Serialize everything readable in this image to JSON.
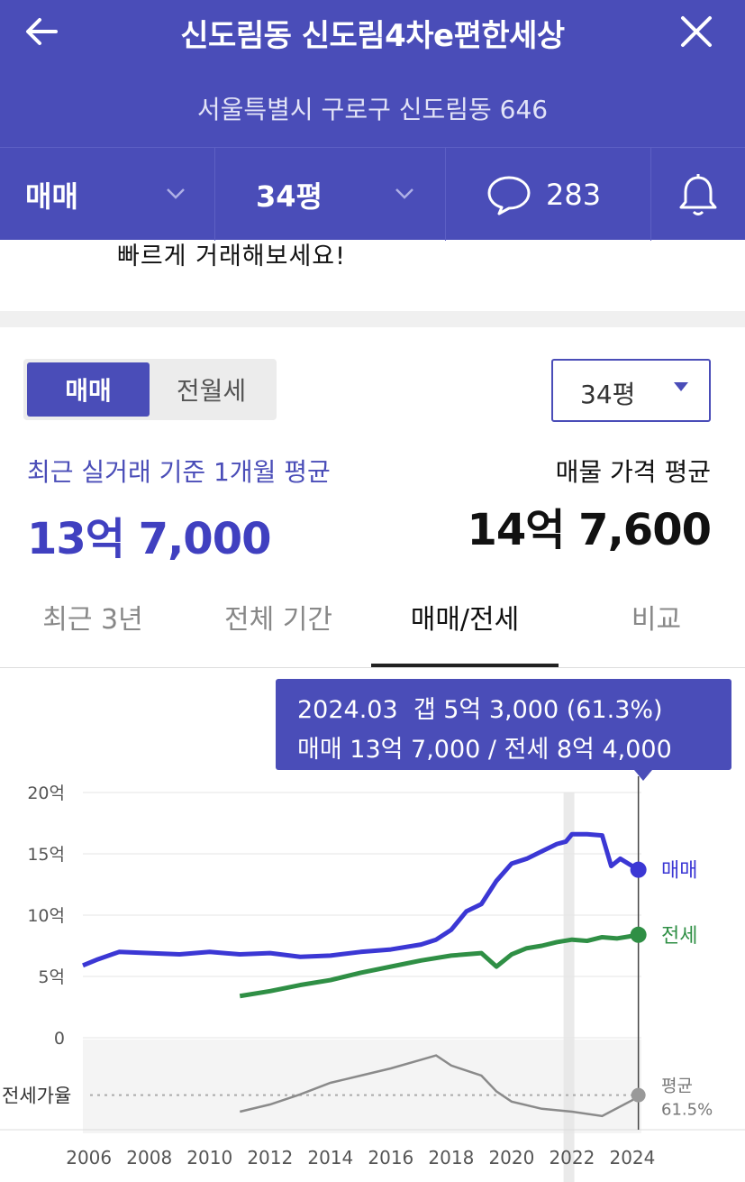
{
  "header": {
    "title": "신도림동 신도림4차e편한세상",
    "address": "서울특별시 구로구 신도림동 646",
    "trade_type": "매매",
    "size": "34평",
    "comment_count": "283",
    "back_icon": "arrow-left-icon",
    "close_icon": "close-icon",
    "comment_icon": "speech-bubble-icon",
    "alert_icon": "bell-icon"
  },
  "banner": {
    "text": "빠르게 거래해보세요!"
  },
  "segment": {
    "active": "매매",
    "inactive": "전월세"
  },
  "size_select": {
    "value": "34평"
  },
  "summary": {
    "recent_label": "최근 실거래 기준 1개월 평균",
    "recent_value": "13억 7,000",
    "listing_label": "매물 가격 평균",
    "listing_value": "14억 7,600"
  },
  "tabs": [
    {
      "label": "최근 3년"
    },
    {
      "label": "전체 기간"
    },
    {
      "label": "매매/전세"
    },
    {
      "label": "비교"
    }
  ],
  "tooltip": {
    "line1": "2024.03  갭 5억 3,000 (61.3%)",
    "line2": "매매 13억 7,000 / 전세 8억 4,000"
  },
  "colors": {
    "accent": "#4a4db8",
    "sale": "#3b37d4",
    "jeonse": "#2f8f45",
    "ratio": "#8a8a8a"
  },
  "chart_data": {
    "type": "line",
    "x_ticks": [
      "2006",
      "2008",
      "2010",
      "2012",
      "2014",
      "2016",
      "2018",
      "2020",
      "2022",
      "2024"
    ],
    "y_ticks": [
      "0",
      "5억",
      "10억",
      "15억",
      "20억"
    ],
    "ylim": [
      0,
      20
    ],
    "xlim": [
      2005.8,
      2024.3
    ],
    "grid": true,
    "series": [
      {
        "name": "매매",
        "x": [
          2005.8,
          2006.3,
          2007.0,
          2008.0,
          2009.0,
          2010.0,
          2011.0,
          2012.0,
          2013.0,
          2014.0,
          2015.0,
          2016.0,
          2017.0,
          2017.5,
          2018.0,
          2018.5,
          2019.0,
          2019.5,
          2020.0,
          2020.5,
          2021.0,
          2021.5,
          2021.8,
          2022.0,
          2022.5,
          2023.0,
          2023.3,
          2023.6,
          2024.0,
          2024.2
        ],
        "values": [
          5.9,
          6.4,
          7.0,
          6.9,
          6.8,
          7.0,
          6.8,
          6.9,
          6.6,
          6.7,
          7.0,
          7.2,
          7.6,
          8.0,
          8.8,
          10.3,
          10.9,
          12.8,
          14.2,
          14.6,
          15.2,
          15.8,
          16.0,
          16.6,
          16.6,
          16.5,
          14.0,
          14.6,
          14.0,
          13.7
        ],
        "end_label": "매매"
      },
      {
        "name": "전세",
        "x": [
          2011.0,
          2012.0,
          2013.0,
          2014.0,
          2015.0,
          2016.0,
          2017.0,
          2018.0,
          2019.0,
          2019.5,
          2020.0,
          2020.5,
          2021.0,
          2021.5,
          2022.0,
          2022.5,
          2023.0,
          2023.5,
          2024.0,
          2024.2
        ],
        "values": [
          3.4,
          3.8,
          4.3,
          4.7,
          5.3,
          5.8,
          6.3,
          6.7,
          6.9,
          5.8,
          6.8,
          7.3,
          7.5,
          7.8,
          8.0,
          7.9,
          8.2,
          8.1,
          8.3,
          8.4
        ],
        "end_label": "전세"
      }
    ],
    "ratio_panel": {
      "label": "전세가율",
      "avg_label": "평균",
      "avg_value": "61.5%",
      "x": [
        2011.0,
        2012.0,
        2013.0,
        2014.0,
        2015.0,
        2016.0,
        2017.0,
        2017.5,
        2018.0,
        2019.0,
        2019.5,
        2020.0,
        2021.0,
        2022.0,
        2023.0,
        2024.0,
        2024.2
      ],
      "values": [
        50,
        55,
        62,
        70,
        75,
        80,
        86,
        89,
        82,
        75,
        64,
        57,
        52,
        50,
        47,
        58,
        61.3
      ],
      "average": 61.5
    },
    "highlight_x": 2021.9,
    "cursor_x": 2024.2
  }
}
